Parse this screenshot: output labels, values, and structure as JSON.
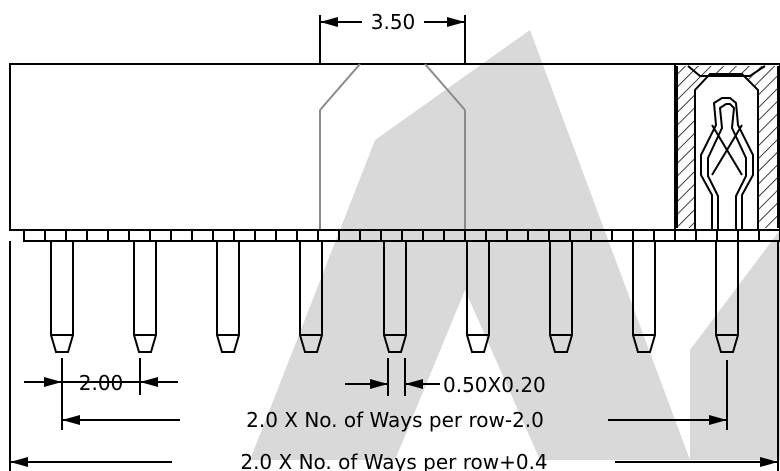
{
  "labels": {
    "top_width": "3.50",
    "pitch": "2.00",
    "pin_size": "0.50X0.20",
    "inner_span": "2.0 X No. of Ways per row-2.0",
    "overall_length": "2.0 X No. of Ways per row+0.4"
  },
  "colors": {
    "line": "#000000",
    "hidden_line": "#8a8a8a",
    "watermark": "#d9d9d9",
    "background": "#ffffff"
  }
}
